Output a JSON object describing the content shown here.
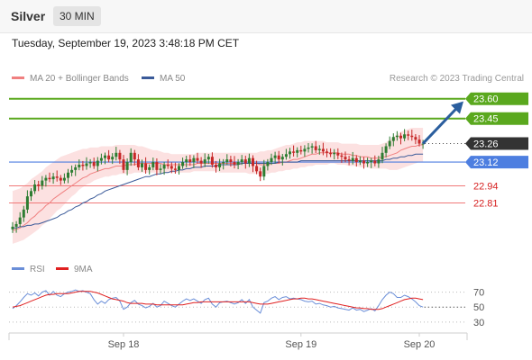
{
  "header": {
    "title": "Silver",
    "timeframe": "30 MIN"
  },
  "timestamp": "Tuesday, September 19, 2023 3:48:18 PM CET",
  "colors": {
    "up": "#2e7d32",
    "down": "#c62828",
    "ma20": "#f08080",
    "ma50": "#3a5a99",
    "bb": "#fcdcdc",
    "resistance": "#5aa81e",
    "support_line": "#4d7ee0",
    "support": "#f07878",
    "arrow": "#2b5e9e",
    "current": "#333333",
    "rsi": "#6a8ed8",
    "rsi_ma": "#e02020"
  },
  "chart_data": [
    {
      "type": "candlestick",
      "legend": [
        {
          "name": "MA 20 + Bollinger Bands",
          "color": "#f08080"
        },
        {
          "name": "MA 50",
          "color": "#3a5a99"
        }
      ],
      "credit": "Research © 2023 Trading Central",
      "x_ticks": [
        {
          "label": "Sep 18",
          "index": 30
        },
        {
          "label": "Sep 19",
          "index": 78
        },
        {
          "label": "Sep 20",
          "index": 110
        }
      ],
      "ylim": [
        22.52,
        23.68
      ],
      "levels": [
        {
          "value": 23.6,
          "label": "23.60",
          "kind": "resistance"
        },
        {
          "value": 23.45,
          "label": "23.45",
          "kind": "resistance"
        },
        {
          "value": 23.26,
          "label": "23.26",
          "kind": "current"
        },
        {
          "value": 23.12,
          "label": "23.12",
          "kind": "pivot"
        },
        {
          "value": 22.94,
          "label": "22.94",
          "kind": "support"
        },
        {
          "value": 22.81,
          "label": "22.81",
          "kind": "support"
        }
      ],
      "arrow": {
        "from_index": 110,
        "from_value": 23.26,
        "to_index": 124,
        "to_value": 23.58
      },
      "closes": [
        22.63,
        22.65,
        22.7,
        22.76,
        22.86,
        22.9,
        22.95,
        22.94,
        22.98,
        23.0,
        22.99,
        23.01,
        23.0,
        22.98,
        23.0,
        23.04,
        23.06,
        23.08,
        23.1,
        23.09,
        23.11,
        23.12,
        23.09,
        23.13,
        23.15,
        23.17,
        23.14,
        23.16,
        23.19,
        23.14,
        23.06,
        23.12,
        23.19,
        23.14,
        23.08,
        23.11,
        23.06,
        23.08,
        23.12,
        23.06,
        23.07,
        23.1,
        23.09,
        23.07,
        23.06,
        23.09,
        23.12,
        23.14,
        23.12,
        23.15,
        23.13,
        23.11,
        23.14,
        23.16,
        23.1,
        23.08,
        23.11,
        23.12,
        23.14,
        23.12,
        23.1,
        23.12,
        23.14,
        23.11,
        23.15,
        23.09,
        23.05,
        23.01,
        23.09,
        23.12,
        23.15,
        23.17,
        23.14,
        23.16,
        23.18,
        23.2,
        23.19,
        23.21,
        23.2,
        23.22,
        23.23,
        23.24,
        23.21,
        23.22,
        23.2,
        23.19,
        23.18,
        23.19,
        23.17,
        23.16,
        23.14,
        23.13,
        23.15,
        23.12,
        23.13,
        23.11,
        23.12,
        23.13,
        23.11,
        23.14,
        23.19,
        23.24,
        23.28,
        23.31,
        23.32,
        23.3,
        23.33,
        23.32,
        23.31,
        23.29,
        23.26,
        23.26
      ],
      "ma20": [
        22.6,
        22.61,
        22.62,
        22.64,
        22.66,
        22.69,
        22.71,
        22.74,
        22.76,
        22.79,
        22.81,
        22.84,
        22.86,
        22.88,
        22.9,
        22.92,
        22.94,
        22.96,
        22.98,
        23.0,
        23.01,
        23.03,
        23.04,
        23.05,
        23.06,
        23.07,
        23.07,
        23.08,
        23.09,
        23.09,
        23.09,
        23.1,
        23.1,
        23.1,
        23.11,
        23.11,
        23.11,
        23.11,
        23.11,
        23.11,
        23.11,
        23.1,
        23.1,
        23.1,
        23.1,
        23.1,
        23.1,
        23.1,
        23.1,
        23.1,
        23.11,
        23.11,
        23.11,
        23.11,
        23.11,
        23.11,
        23.11,
        23.11,
        23.11,
        23.11,
        23.11,
        23.11,
        23.11,
        23.11,
        23.11,
        23.11,
        23.11,
        23.1,
        23.1,
        23.1,
        23.11,
        23.11,
        23.11,
        23.12,
        23.12,
        23.13,
        23.14,
        23.14,
        23.15,
        23.16,
        23.17,
        23.18,
        23.18,
        23.19,
        23.19,
        23.19,
        23.19,
        23.19,
        23.19,
        23.18,
        23.18,
        23.18,
        23.17,
        23.17,
        23.16,
        23.16,
        23.16,
        23.15,
        23.15,
        23.15,
        23.16,
        23.16,
        23.17,
        23.18,
        23.19,
        23.21,
        23.22,
        23.23,
        23.24,
        23.24,
        23.25,
        23.25
      ],
      "bb_upper": [
        22.9,
        22.91,
        22.92,
        22.94,
        22.96,
        22.99,
        23.01,
        23.03,
        23.05,
        23.08,
        23.1,
        23.12,
        23.14,
        23.16,
        23.17,
        23.18,
        23.19,
        23.2,
        23.21,
        23.22,
        23.22,
        23.23,
        23.23,
        23.23,
        23.24,
        23.24,
        23.24,
        23.24,
        23.25,
        23.25,
        23.25,
        23.25,
        23.25,
        23.25,
        23.24,
        23.24,
        23.23,
        23.22,
        23.21,
        23.21,
        23.2,
        23.19,
        23.19,
        23.18,
        23.18,
        23.18,
        23.18,
        23.18,
        23.18,
        23.18,
        23.19,
        23.19,
        23.19,
        23.19,
        23.19,
        23.19,
        23.19,
        23.19,
        23.19,
        23.19,
        23.19,
        23.19,
        23.19,
        23.19,
        23.19,
        23.19,
        23.19,
        23.2,
        23.2,
        23.21,
        23.21,
        23.22,
        23.23,
        23.24,
        23.25,
        23.25,
        23.26,
        23.27,
        23.27,
        23.28,
        23.28,
        23.28,
        23.28,
        23.28,
        23.28,
        23.27,
        23.27,
        23.27,
        23.27,
        23.26,
        23.26,
        23.26,
        23.26,
        23.26,
        23.25,
        23.25,
        23.25,
        23.25,
        23.25,
        23.25,
        23.26,
        23.27,
        23.29,
        23.31,
        23.33,
        23.35,
        23.36,
        23.37,
        23.38,
        23.38,
        23.38,
        23.38
      ],
      "bb_lower": [
        22.5,
        22.51,
        22.52,
        22.53,
        22.55,
        22.57,
        22.59,
        22.61,
        22.64,
        22.66,
        22.69,
        22.72,
        22.75,
        22.77,
        22.8,
        22.83,
        22.86,
        22.88,
        22.91,
        22.93,
        22.95,
        22.96,
        22.98,
        22.99,
        23.0,
        23.01,
        23.01,
        23.02,
        23.02,
        23.03,
        23.03,
        23.03,
        23.03,
        23.04,
        23.04,
        23.04,
        23.04,
        23.04,
        23.04,
        23.04,
        23.04,
        23.04,
        23.04,
        23.04,
        23.04,
        23.04,
        23.04,
        23.04,
        23.04,
        23.05,
        23.05,
        23.05,
        23.05,
        23.05,
        23.05,
        23.05,
        23.04,
        23.04,
        23.04,
        23.04,
        23.04,
        23.04,
        23.04,
        23.04,
        23.03,
        23.03,
        23.03,
        23.03,
        23.03,
        23.03,
        23.04,
        23.04,
        23.05,
        23.05,
        23.06,
        23.06,
        23.07,
        23.07,
        23.08,
        23.08,
        23.09,
        23.09,
        23.1,
        23.1,
        23.1,
        23.1,
        23.11,
        23.11,
        23.1,
        23.1,
        23.1,
        23.09,
        23.09,
        23.09,
        23.08,
        23.08,
        23.08,
        23.07,
        23.07,
        23.07,
        23.07,
        23.07,
        23.06,
        23.06,
        23.06,
        23.07,
        23.08,
        23.09,
        23.1,
        23.11,
        23.12,
        23.12
      ],
      "ma50": [
        22.62,
        22.62,
        22.63,
        22.63,
        22.64,
        22.64,
        22.65,
        22.65,
        22.66,
        22.67,
        22.68,
        22.69,
        22.7,
        22.72,
        22.73,
        22.75,
        22.76,
        22.78,
        22.79,
        22.81,
        22.82,
        22.84,
        22.85,
        22.87,
        22.88,
        22.9,
        22.91,
        22.92,
        22.93,
        22.94,
        22.95,
        22.96,
        22.97,
        22.98,
        22.99,
        23.0,
        23.01,
        23.01,
        23.02,
        23.03,
        23.03,
        23.04,
        23.04,
        23.05,
        23.05,
        23.06,
        23.06,
        23.07,
        23.07,
        23.08,
        23.08,
        23.08,
        23.09,
        23.09,
        23.09,
        23.09,
        23.1,
        23.1,
        23.1,
        23.1,
        23.1,
        23.1,
        23.11,
        23.11,
        23.11,
        23.11,
        23.11,
        23.11,
        23.11,
        23.11,
        23.11,
        23.11,
        23.12,
        23.12,
        23.12,
        23.12,
        23.12,
        23.12,
        23.13,
        23.13,
        23.13,
        23.13,
        23.13,
        23.13,
        23.13,
        23.13,
        23.13,
        23.13,
        23.13,
        23.13,
        23.13,
        23.13,
        23.13,
        23.13,
        23.13,
        23.13,
        23.13,
        23.13,
        23.13,
        23.13,
        23.13,
        23.14,
        23.14,
        23.15,
        23.15,
        23.16,
        23.16,
        23.17,
        23.17,
        23.18,
        23.18,
        23.18
      ]
    },
    {
      "type": "line",
      "legend": [
        {
          "name": "RSI",
          "color": "#6a8ed8"
        },
        {
          "name": "9MA",
          "color": "#e02020"
        }
      ],
      "y_ticks": [
        70,
        50,
        30
      ],
      "ylim": [
        25,
        78
      ],
      "rsi": [
        48,
        52,
        57,
        63,
        68,
        66,
        69,
        65,
        70,
        72,
        66,
        71,
        66,
        64,
        68,
        70,
        71,
        73,
        71,
        72,
        70,
        68,
        60,
        54,
        58,
        55,
        60,
        62,
        63,
        58,
        47,
        50,
        56,
        59,
        54,
        52,
        49,
        51,
        55,
        50,
        52,
        58,
        55,
        52,
        50,
        54,
        58,
        61,
        59,
        61,
        58,
        55,
        60,
        62,
        54,
        50,
        56,
        57,
        58,
        56,
        54,
        56,
        60,
        55,
        60,
        50,
        46,
        42,
        56,
        58,
        62,
        64,
        60,
        63,
        64,
        61,
        62,
        61,
        60,
        58,
        57,
        58,
        54,
        55,
        53,
        52,
        50,
        51,
        49,
        48,
        47,
        46,
        49,
        46,
        47,
        44,
        46,
        48,
        45,
        52,
        60,
        66,
        70,
        68,
        63,
        63,
        66,
        64,
        61,
        57,
        52,
        50
      ],
      "rsi_ma": [
        50,
        51,
        52,
        54,
        56,
        58,
        60,
        62,
        64,
        66,
        67,
        67,
        68,
        68,
        68,
        68,
        69,
        70,
        71,
        71,
        71,
        71,
        70,
        69,
        67,
        65,
        63,
        61,
        60,
        59,
        58,
        56,
        55,
        55,
        55,
        55,
        54,
        54,
        54,
        53,
        53,
        53,
        53,
        53,
        53,
        53,
        53,
        54,
        55,
        56,
        56,
        57,
        57,
        57,
        57,
        57,
        57,
        57,
        57,
        57,
        57,
        57,
        57,
        57,
        57,
        56,
        55,
        54,
        54,
        54,
        55,
        56,
        57,
        58,
        59,
        60,
        61,
        61,
        62,
        62,
        61,
        61,
        60,
        59,
        58,
        57,
        56,
        55,
        54,
        53,
        52,
        51,
        50,
        49,
        49,
        48,
        48,
        47,
        47,
        47,
        48,
        50,
        52,
        54,
        56,
        58,
        60,
        61,
        62,
        62,
        61,
        60
      ]
    }
  ]
}
